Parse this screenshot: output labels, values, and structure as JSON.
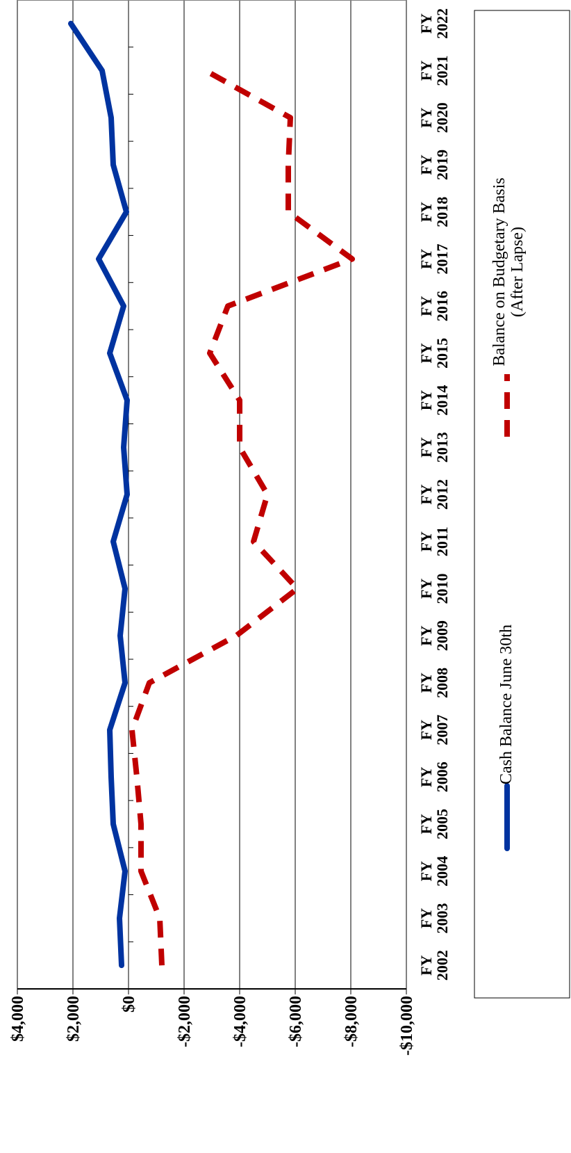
{
  "chart_data": {
    "type": "line",
    "categories": [
      "FY 2002",
      "FY 2003",
      "FY 2004",
      "FY 2005",
      "FY 2006",
      "FY 2007",
      "FY 2008",
      "FY 2009",
      "FY 2010",
      "FY 2011",
      "FY 2012",
      "FY 2013",
      "FY 2014",
      "FY 2015",
      "FY 2016",
      "FY 2017",
      "FY 2018",
      "FY 2019",
      "FY 2020",
      "FY 2021",
      "FY 2022"
    ],
    "series": [
      {
        "name": "Cash Balance June 30th",
        "color": "#0033a0",
        "dashed": false,
        "values": [
          250,
          325,
          125,
          550,
          625,
          675,
          125,
          300,
          125,
          550,
          50,
          175,
          50,
          675,
          175,
          1075,
          75,
          550,
          625,
          950,
          2075
        ]
      },
      {
        "name": "Balance on Budgetary Basis (After Lapse)",
        "color": "#c00000",
        "dashed": true,
        "values": [
          -1200,
          -1125,
          -450,
          -450,
          -300,
          -125,
          -750,
          -3875,
          -6075,
          -4500,
          -5000,
          -4000,
          -4000,
          -2925,
          -3575,
          -8050,
          -5750,
          -5750,
          -5825,
          -2775,
          null
        ]
      }
    ],
    "ylim": [
      -10000,
      4000
    ],
    "yticks": [
      {
        "value": -10000,
        "label": "-$10,000"
      },
      {
        "value": -8000,
        "label": "-$8,000"
      },
      {
        "value": -6000,
        "label": "-$6,000"
      },
      {
        "value": -4000,
        "label": "-$4,000"
      },
      {
        "value": -2000,
        "label": "-$2,000"
      },
      {
        "value": 0,
        "label": "$0"
      },
      {
        "value": 2000,
        "label": "$2,000"
      },
      {
        "value": 4000,
        "label": "$4,000"
      }
    ],
    "grid": true
  }
}
